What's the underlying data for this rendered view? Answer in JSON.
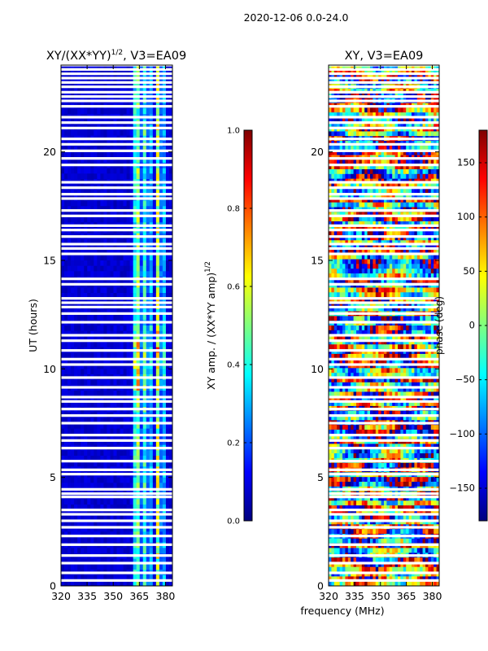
{
  "figure": {
    "suptitle": "2020-12-06 0.0-24.0",
    "shared_xlabel": "frequency (MHz)"
  },
  "colors": {
    "jet": [
      "#00007f",
      "#0000ff",
      "#007fff",
      "#00ffff",
      "#7fff7f",
      "#ffff00",
      "#ff7f00",
      "#ff0000",
      "#7f0000"
    ],
    "flag": "#ffffff",
    "axis": "#000000"
  },
  "chart_data": [
    {
      "type": "heatmap",
      "title_main": "XY/(XX*YY)",
      "title_sup": "1/2",
      "title_rest": ", V3=EA09",
      "xlabel": "",
      "ylabel": "UT (hours)",
      "xlim": [
        320,
        384
      ],
      "ylim": [
        0,
        24
      ],
      "xticks": [
        320,
        335,
        350,
        365,
        380
      ],
      "yticks": [
        0,
        5,
        10,
        15,
        20
      ],
      "colorbar": {
        "label_main": "XY amp. / (XX*YY amp)",
        "label_sup": "1/2",
        "vmin": 0.0,
        "vmax": 1.0,
        "ticks": [
          "0.0",
          "0.2",
          "0.4",
          "0.6",
          "0.8",
          "1.0"
        ],
        "tick_values": [
          0.0,
          0.2,
          0.4,
          0.6,
          0.8,
          1.0
        ]
      }
    },
    {
      "type": "heatmap",
      "title_main": "XY, V3=EA09",
      "xlabel": "frequency (MHz)",
      "ylabel": "",
      "xlim": [
        320,
        384
      ],
      "ylim": [
        0,
        24
      ],
      "xticks": [
        320,
        335,
        350,
        365,
        380
      ],
      "yticks": [
        0,
        5,
        10,
        15,
        20
      ],
      "colorbar": {
        "label_main": "phase (deg)",
        "vmin": -180,
        "vmax": 180,
        "ticks": [
          "−150",
          "−100",
          "−50",
          "0",
          "50",
          "100",
          "150"
        ],
        "tick_values": [
          -150,
          -100,
          -50,
          0,
          50,
          100,
          150
        ]
      }
    }
  ],
  "flagged_hours": [
    0.25,
    0.6,
    1.05,
    1.4,
    1.9,
    2.3,
    2.7,
    3.0,
    3.3,
    3.5,
    4.1,
    4.25,
    4.45,
    5.15,
    5.35,
    5.75,
    6.35,
    6.7,
    6.95,
    7.5,
    7.85,
    8.15,
    8.5,
    8.7,
    9.15,
    9.6,
    10.2,
    10.45,
    10.85,
    11.3,
    11.55,
    12.15,
    12.55,
    12.85,
    13.05,
    13.25,
    13.9,
    14.15,
    15.3,
    15.55,
    15.75,
    16.1,
    16.4,
    16.6,
    17.05,
    17.3,
    17.85,
    18.05,
    18.35,
    18.6,
    19.4,
    19.7,
    20.05,
    20.35,
    20.6,
    21.1,
    21.35,
    21.6,
    22.1,
    22.35,
    22.55,
    22.75,
    23.0,
    23.2,
    23.4,
    23.6,
    23.8,
    24.0
  ]
}
